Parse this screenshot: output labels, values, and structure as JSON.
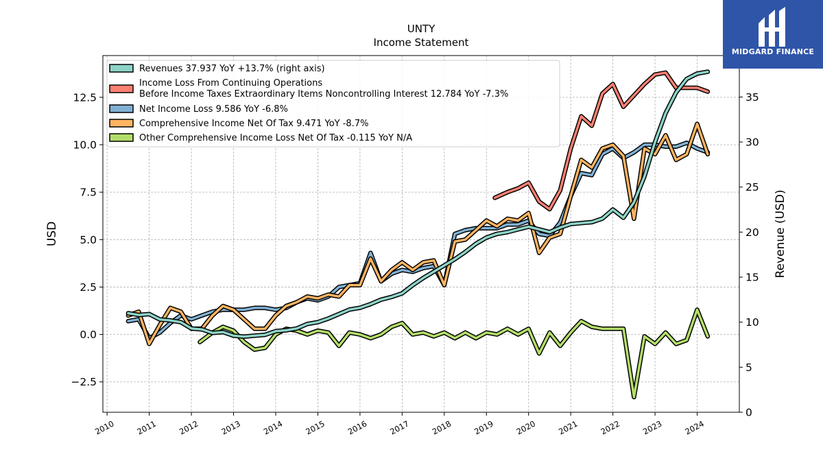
{
  "logo": {
    "text": "MIDGARD FINANCE"
  },
  "chart_data": {
    "type": "line",
    "title": "UNTY",
    "subtitle": "Income Statement",
    "ylabel": "USD",
    "ylabel_right": "Revenue (USD)",
    "ylim": [
      -4.1,
      14.7
    ],
    "ylim_right": [
      0,
      39.6
    ],
    "xlim": [
      2009.9,
      2025.0
    ],
    "yticks": [
      -2.5,
      0.0,
      2.5,
      5.0,
      7.5,
      10.0,
      12.5
    ],
    "ytick_labels": [
      "−2.5",
      "0.0",
      "2.5",
      "5.0",
      "7.5",
      "10.0",
      "12.5"
    ],
    "yticks_right": [
      0,
      5,
      10,
      15,
      20,
      25,
      30,
      35
    ],
    "ytick_labels_right": [
      "0",
      "5",
      "10",
      "15",
      "20",
      "25",
      "30",
      "35"
    ],
    "xticks": [
      2010,
      2011,
      2012,
      2013,
      2014,
      2015,
      2016,
      2017,
      2018,
      2019,
      2020,
      2021,
      2022,
      2023,
      2024
    ],
    "xtick_labels": [
      "2010",
      "2011",
      "2012",
      "2013",
      "2014",
      "2015",
      "2016",
      "2017",
      "2018",
      "2019",
      "2020",
      "2021",
      "2022",
      "2023",
      "2024"
    ],
    "grid": true,
    "legend_position": "top-left",
    "series": [
      {
        "name": "Revenues",
        "legend": "Revenues  37.937 YoY +13.7% (right axis)",
        "axis": "right",
        "color": "#8dd3c7",
        "x": [
          2010.5,
          2010.75,
          2011.0,
          2011.25,
          2011.5,
          2011.75,
          2012.0,
          2012.25,
          2012.5,
          2012.75,
          2013.0,
          2013.25,
          2013.5,
          2013.75,
          2014.0,
          2014.25,
          2014.5,
          2014.75,
          2015.0,
          2015.25,
          2015.5,
          2015.75,
          2016.0,
          2016.25,
          2016.5,
          2016.75,
          2017.0,
          2017.25,
          2017.5,
          2017.75,
          2018.0,
          2018.25,
          2018.5,
          2018.75,
          2019.0,
          2019.25,
          2019.5,
          2019.75,
          2020.0,
          2020.25,
          2020.5,
          2020.75,
          2021.0,
          2021.25,
          2021.5,
          2021.75,
          2022.0,
          2022.25,
          2022.5,
          2022.75,
          2023.0,
          2023.25,
          2023.5,
          2023.75,
          2024.0,
          2024.25
        ],
        "values": [
          11.0,
          10.8,
          10.9,
          10.3,
          10.2,
          10.0,
          9.3,
          9.2,
          8.8,
          8.9,
          8.5,
          8.4,
          8.5,
          8.6,
          9.0,
          9.1,
          9.3,
          9.8,
          10.0,
          10.4,
          10.9,
          11.4,
          11.6,
          12.0,
          12.5,
          12.8,
          13.2,
          14.1,
          14.9,
          15.6,
          16.3,
          17.0,
          17.8,
          18.7,
          19.4,
          19.8,
          20.0,
          20.3,
          20.6,
          20.3,
          20.0,
          20.5,
          20.9,
          21.0,
          21.1,
          21.5,
          22.5,
          21.6,
          23.3,
          26.2,
          30.0,
          33.2,
          35.5,
          37.0,
          37.6,
          37.8
        ]
      },
      {
        "name": "Income Loss From Continuing Operations Before Income Taxes Extraordinary Items Noncontrolling Interest",
        "legend_line1": "Income Loss From Continuing Operations",
        "legend_line2": "Before Income Taxes Extraordinary Items Noncontrolling Interest  12.784 YoY -7.3%",
        "axis": "left",
        "color": "#fb8072",
        "x": [
          2019.2,
          2019.5,
          2019.75,
          2020.0,
          2020.25,
          2020.5,
          2020.75,
          2021.0,
          2021.25,
          2021.5,
          2021.75,
          2022.0,
          2022.25,
          2022.5,
          2022.75,
          2023.0,
          2023.25,
          2023.5,
          2023.75,
          2024.0,
          2024.25
        ],
        "values": [
          7.2,
          7.5,
          7.7,
          8.0,
          7.0,
          6.6,
          7.6,
          9.8,
          11.5,
          11.0,
          12.7,
          13.2,
          12.0,
          12.6,
          13.2,
          13.7,
          13.8,
          13.0,
          13.0,
          13.0,
          12.8
        ]
      },
      {
        "name": "Net Income Loss",
        "legend": "Net Income Loss  9.586 YoY -6.8%",
        "axis": "left",
        "color": "#80b1d3",
        "x": [
          2010.5,
          2010.75,
          2011.0,
          2011.25,
          2011.5,
          2011.75,
          2012.0,
          2012.25,
          2012.5,
          2012.75,
          2013.0,
          2013.25,
          2013.5,
          2013.75,
          2014.0,
          2014.25,
          2014.5,
          2014.75,
          2015.0,
          2015.25,
          2015.5,
          2015.75,
          2016.0,
          2016.25,
          2016.5,
          2016.75,
          2017.0,
          2017.25,
          2017.5,
          2017.75,
          2018.0,
          2018.25,
          2018.5,
          2018.75,
          2019.0,
          2019.25,
          2019.5,
          2019.75,
          2020.0,
          2020.25,
          2020.5,
          2020.75,
          2021.0,
          2021.25,
          2021.5,
          2021.75,
          2022.0,
          2022.25,
          2022.5,
          2022.75,
          2023.0,
          2023.25,
          2023.5,
          2023.75,
          2024.0,
          2024.25
        ],
        "values": [
          0.7,
          0.8,
          -0.2,
          0.1,
          0.6,
          1.0,
          0.8,
          1.0,
          1.2,
          1.3,
          1.3,
          1.3,
          1.4,
          1.4,
          1.3,
          1.4,
          1.7,
          1.9,
          1.8,
          2.0,
          2.5,
          2.6,
          2.7,
          4.3,
          2.8,
          3.2,
          3.4,
          3.3,
          3.5,
          3.6,
          2.6,
          5.3,
          5.5,
          5.6,
          5.6,
          5.6,
          5.8,
          5.8,
          6.0,
          5.3,
          5.2,
          5.9,
          7.3,
          8.5,
          8.4,
          9.5,
          9.8,
          9.3,
          9.6,
          10.0,
          10.0,
          9.9,
          9.9,
          10.1,
          9.8,
          9.6
        ]
      },
      {
        "name": "Comprehensive Income Net Of Tax",
        "legend": "Comprehensive Income Net Of Tax  9.471 YoY -8.7%",
        "axis": "left",
        "color": "#fdb462",
        "x": [
          2010.5,
          2010.75,
          2011.0,
          2011.25,
          2011.5,
          2011.75,
          2012.0,
          2012.25,
          2012.5,
          2012.75,
          2013.0,
          2013.25,
          2013.5,
          2013.75,
          2014.0,
          2014.25,
          2014.5,
          2014.75,
          2015.0,
          2015.25,
          2015.5,
          2015.75,
          2016.0,
          2016.25,
          2016.5,
          2016.75,
          2017.0,
          2017.25,
          2017.5,
          2017.75,
          2018.0,
          2018.25,
          2018.5,
          2018.75,
          2019.0,
          2019.25,
          2019.5,
          2019.75,
          2020.0,
          2020.25,
          2020.5,
          2020.75,
          2021.0,
          2021.25,
          2021.5,
          2021.75,
          2022.0,
          2022.25,
          2022.5,
          2022.75,
          2023.0,
          2023.25,
          2023.5,
          2023.75,
          2024.0,
          2024.25
        ],
        "values": [
          1.0,
          1.2,
          -0.5,
          0.5,
          1.4,
          1.2,
          0.3,
          0.3,
          1.0,
          1.5,
          1.3,
          0.8,
          0.3,
          0.3,
          1.0,
          1.5,
          1.7,
          2.0,
          1.9,
          2.1,
          2.0,
          2.6,
          2.6,
          4.0,
          2.8,
          3.4,
          3.8,
          3.4,
          3.8,
          3.9,
          2.6,
          4.9,
          5.0,
          5.5,
          6.0,
          5.7,
          6.1,
          6.0,
          6.4,
          4.3,
          5.1,
          5.3,
          7.3,
          9.2,
          8.8,
          9.8,
          10.0,
          9.4,
          6.1,
          9.8,
          9.5,
          10.5,
          9.2,
          9.5,
          11.1,
          9.5
        ]
      },
      {
        "name": "Other Comprehensive Income Loss Net Of Tax",
        "legend": "Other Comprehensive Income Loss Net Of Tax  -0.115 YoY N/A",
        "axis": "left",
        "color": "#b3de69",
        "x": [
          2012.2,
          2012.5,
          2012.75,
          2013.0,
          2013.25,
          2013.5,
          2013.75,
          2014.0,
          2014.25,
          2014.5,
          2014.75,
          2015.0,
          2015.25,
          2015.5,
          2015.75,
          2016.0,
          2016.25,
          2016.5,
          2016.75,
          2017.0,
          2017.25,
          2017.5,
          2017.75,
          2018.0,
          2018.25,
          2018.5,
          2018.75,
          2019.0,
          2019.25,
          2019.5,
          2019.75,
          2020.0,
          2020.25,
          2020.5,
          2020.75,
          2021.0,
          2021.25,
          2021.5,
          2021.75,
          2022.0,
          2022.25,
          2022.5,
          2022.75,
          2023.0,
          2023.25,
          2023.5,
          2023.75,
          2024.0,
          2024.25
        ],
        "values": [
          -0.4,
          0.1,
          0.4,
          0.2,
          -0.4,
          -0.8,
          -0.7,
          0.0,
          0.3,
          0.2,
          0.0,
          0.2,
          0.1,
          -0.6,
          0.1,
          0.0,
          -0.2,
          0.0,
          0.4,
          0.6,
          0.0,
          0.1,
          -0.1,
          0.1,
          -0.2,
          0.1,
          -0.2,
          0.1,
          0.0,
          0.3,
          0.0,
          0.3,
          -1.0,
          0.1,
          -0.6,
          0.1,
          0.7,
          0.4,
          0.3,
          0.3,
          0.3,
          -3.3,
          -0.1,
          -0.5,
          0.1,
          -0.5,
          -0.3,
          1.3,
          -0.1
        ]
      }
    ]
  }
}
